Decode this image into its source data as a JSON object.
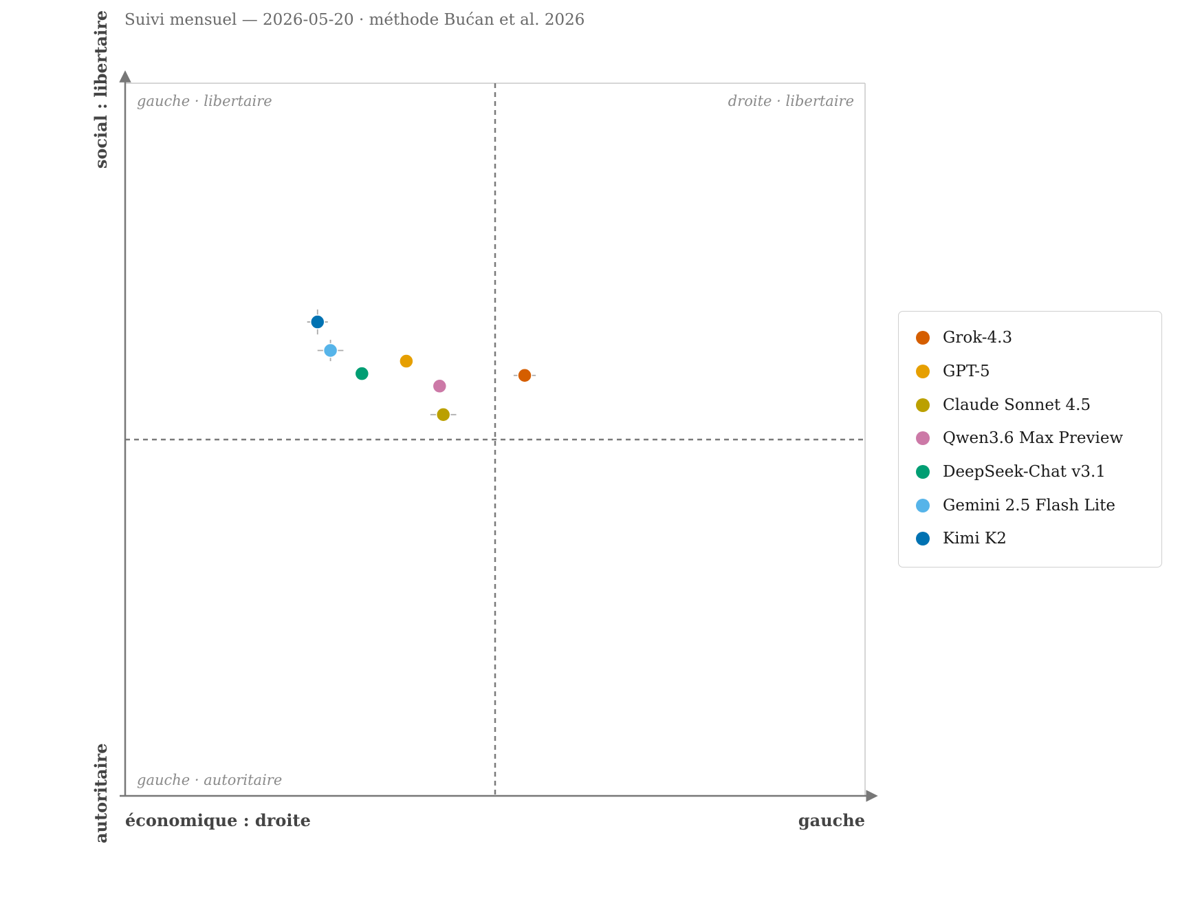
{
  "subtitle": "Suivi mensuel — 2026-05-20 · méthode Bućan et al. 2026",
  "chart_data": {
    "type": "scatter",
    "title": "",
    "xlabel_left": "économique : droite",
    "xlabel_right": "gauche",
    "ylabel_top": "social : libertaire",
    "ylabel_bottom": "autoritaire",
    "xlim": [
      -1,
      1
    ],
    "ylim": [
      -1,
      1
    ],
    "quadrant_labels": {
      "top_left": "gauche · libertaire",
      "top_right": "droite · libertaire",
      "bottom_left": "gauche · autoritaire"
    },
    "legend_position": "right",
    "series": [
      {
        "name": "Grok-4.3",
        "color": "#D55E00",
        "x": 0.08,
        "y": 0.18,
        "xerr": 0.03,
        "yerr": 0.0
      },
      {
        "name": "GPT-5",
        "color": "#E69F00",
        "x": -0.24,
        "y": 0.22,
        "xerr": 0.0,
        "yerr": 0.0
      },
      {
        "name": "Claude Sonnet 4.5",
        "color": "#BBA000",
        "x": -0.14,
        "y": 0.07,
        "xerr": 0.035,
        "yerr": 0.0
      },
      {
        "name": "Qwen3.6 Max Preview",
        "color": "#CC79A7",
        "x": -0.15,
        "y": 0.15,
        "xerr": 0.0,
        "yerr": 0.0
      },
      {
        "name": "DeepSeek-Chat v3.1",
        "color": "#009E73",
        "x": -0.36,
        "y": 0.185,
        "xerr": 0.0,
        "yerr": 0.0
      },
      {
        "name": "Gemini 2.5 Flash Lite",
        "color": "#56B4E9",
        "x": -0.445,
        "y": 0.25,
        "xerr": 0.035,
        "yerr": 0.03
      },
      {
        "name": "Kimi K2",
        "color": "#0072B2",
        "x": -0.48,
        "y": 0.33,
        "xerr": 0.028,
        "yerr": 0.035
      }
    ]
  }
}
